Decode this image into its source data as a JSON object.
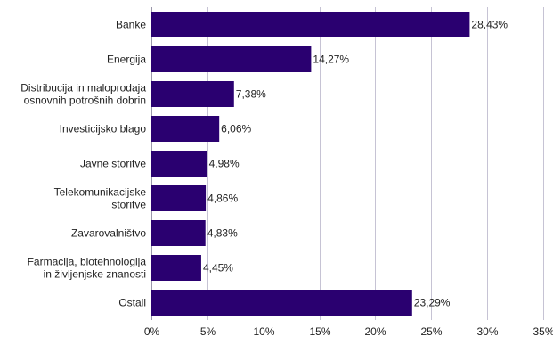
{
  "chart_data": {
    "type": "bar",
    "orientation": "horizontal",
    "title": "",
    "xlabel": "",
    "ylabel": "",
    "categories": [
      [
        "Banke"
      ],
      [
        "Energija"
      ],
      [
        "Distribucija in maloprodaja",
        "osnovnih potrošnih dobrin"
      ],
      [
        "Investicijsko blago"
      ],
      [
        "Javne storitve"
      ],
      [
        "Telekomunikacijske",
        "storitve"
      ],
      [
        "Zavarovalništvo"
      ],
      [
        "Farmacija, biotehnologija",
        "in življenjske znanosti"
      ],
      [
        "Ostali"
      ]
    ],
    "values": [
      28.43,
      14.27,
      7.38,
      6.06,
      4.98,
      4.86,
      4.83,
      4.45,
      23.29
    ],
    "value_labels": [
      "28,43%",
      "14,27%",
      "7,38%",
      "6,06%",
      "4,98%",
      "4,86%",
      "4,83%",
      "4,45%",
      "23,29%"
    ],
    "xlim": [
      0,
      35
    ],
    "x_ticks": [
      0,
      5,
      10,
      15,
      20,
      25,
      30,
      35
    ],
    "x_tick_labels": [
      "0%",
      "5%",
      "10%",
      "15%",
      "20%",
      "25%",
      "30%",
      "35%"
    ],
    "bar_color": "#2a0070",
    "grid": true,
    "legend": "none"
  }
}
